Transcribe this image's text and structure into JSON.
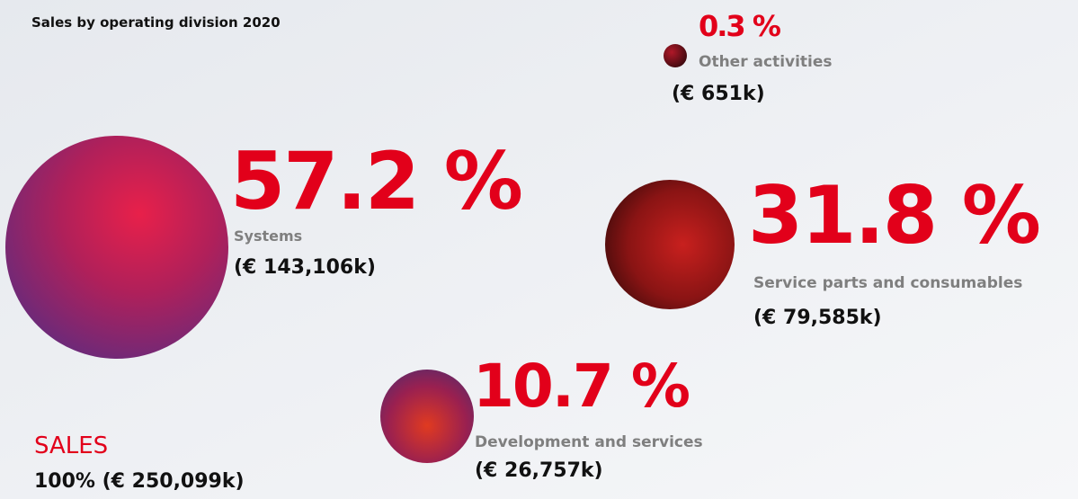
{
  "title": "Sales by operating division 2020",
  "divisions": [
    {
      "percent": "0.3 %",
      "name": "Other activities",
      "amount": "(€ 651k)"
    },
    {
      "percent": "57.2 %",
      "name": "Systems",
      "amount": "(€ 143,106k)"
    },
    {
      "percent": "31.8 %",
      "name": "Service parts and consumables",
      "amount": "(€ 79,585k)"
    },
    {
      "percent": "10.7 %",
      "name": "Development and services",
      "amount": "(€ 26,757k)"
    }
  ],
  "total": {
    "label": "SALES",
    "value": "100% (€ 250,099k)"
  }
}
